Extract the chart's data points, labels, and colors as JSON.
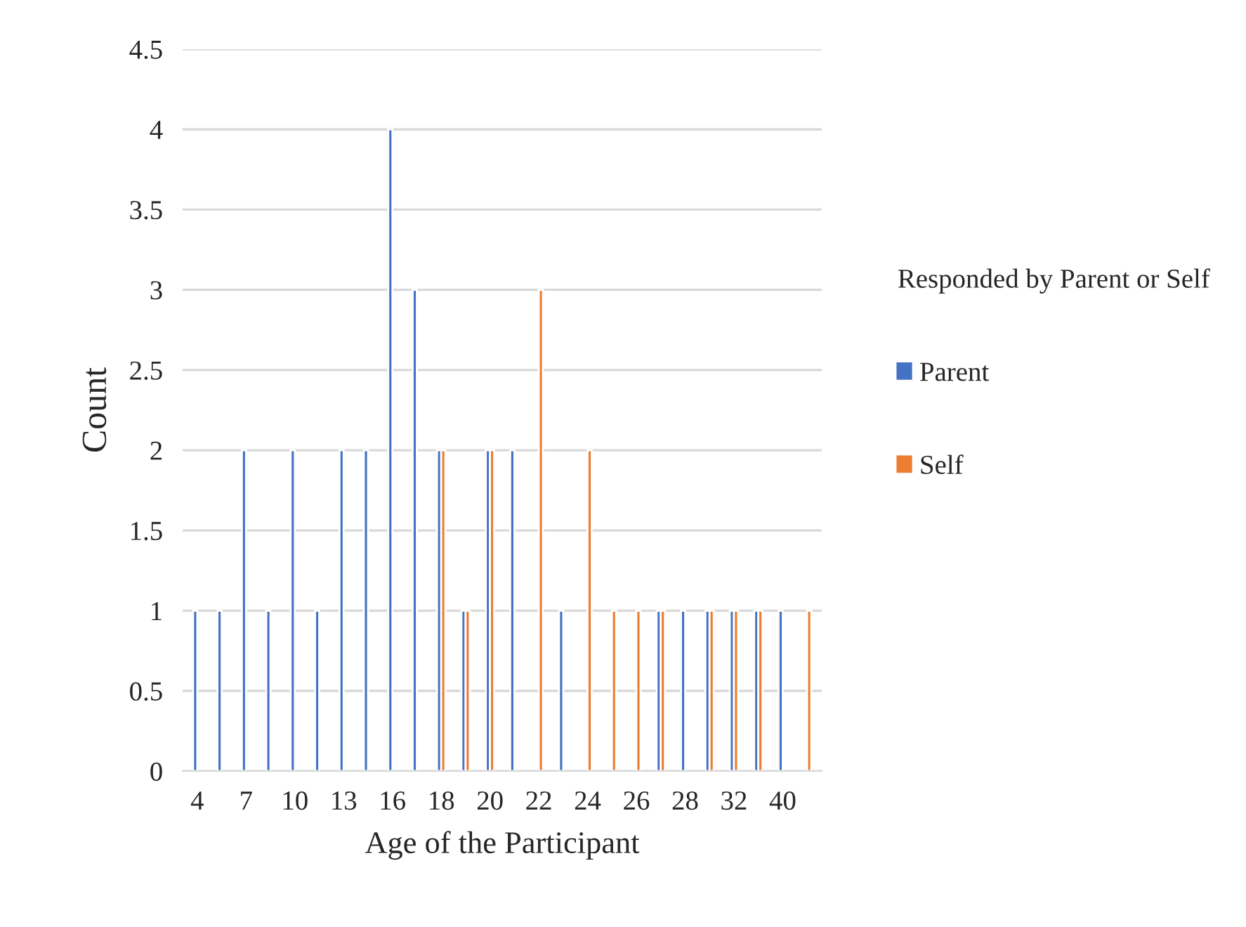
{
  "chart_data": {
    "type": "bar",
    "xlabel": "Age of the Participant",
    "ylabel": "Count",
    "legend_title": "Responded by Parent or Self",
    "categories": [
      "4",
      null,
      "7",
      null,
      "10",
      null,
      "13",
      null,
      "16",
      null,
      "18",
      null,
      "20",
      null,
      "22",
      null,
      "24",
      null,
      "26",
      null,
      "28",
      null,
      "32",
      null,
      "40",
      null
    ],
    "series": [
      {
        "name": "Parent",
        "color": "#4472c4",
        "values": [
          1,
          1,
          2,
          1,
          2,
          1,
          2,
          2,
          4,
          3,
          2,
          1,
          2,
          2,
          null,
          1,
          null,
          null,
          null,
          1,
          1,
          1,
          1,
          1,
          1,
          null
        ]
      },
      {
        "name": "Self",
        "color": "#ed7d31",
        "values": [
          null,
          null,
          null,
          null,
          null,
          null,
          null,
          null,
          null,
          null,
          2,
          1,
          2,
          null,
          3,
          null,
          2,
          1,
          1,
          1,
          null,
          1,
          1,
          1,
          null,
          1
        ]
      }
    ],
    "ylim": [
      0,
      4.5
    ],
    "yticks": [
      0,
      0.5,
      1,
      1.5,
      2,
      2.5,
      3,
      3.5,
      4,
      4.5
    ],
    "grid": "y",
    "legend": "right"
  }
}
